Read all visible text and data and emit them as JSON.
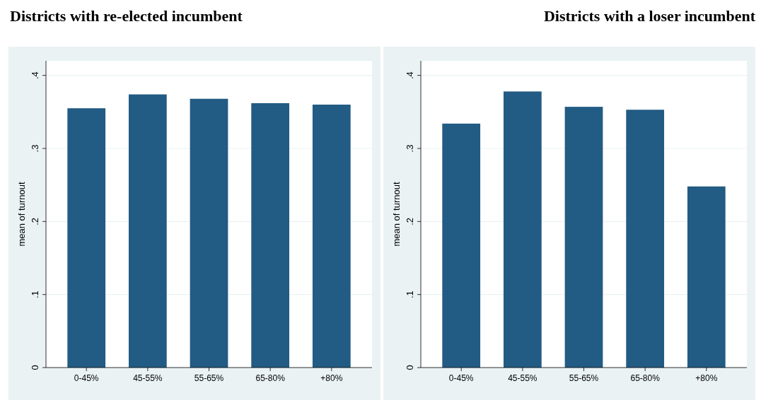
{
  "chart_data": [
    {
      "type": "bar",
      "title": "Districts with re-elected incumbent",
      "ylabel": "mean of turnout",
      "categories": [
        "0-45%",
        "45-55%",
        "55-65%",
        "65-80%",
        "+80%"
      ],
      "values": [
        0.355,
        0.374,
        0.368,
        0.362,
        0.36
      ],
      "color": "#225b83",
      "ylim": [
        0,
        0.42
      ],
      "yticks": [
        {
          "value": 0,
          "label": "0"
        },
        {
          "value": 0.1,
          "label": ".1"
        },
        {
          "value": 0.2,
          "label": ".2"
        },
        {
          "value": 0.3,
          "label": ".3"
        },
        {
          "value": 0.4,
          "label": ".4"
        }
      ],
      "grid": "y"
    },
    {
      "type": "bar",
      "title": "Districts with a loser incumbent",
      "ylabel": "mean of turnout",
      "categories": [
        "0-45%",
        "45-55%",
        "55-65%",
        "65-80%",
        "+80%"
      ],
      "values": [
        0.334,
        0.378,
        0.357,
        0.353,
        0.248
      ],
      "color": "#225b83",
      "ylim": [
        0,
        0.42
      ],
      "yticks": [
        {
          "value": 0,
          "label": "0"
        },
        {
          "value": 0.1,
          "label": ".1"
        },
        {
          "value": 0.2,
          "label": ".2"
        },
        {
          "value": 0.3,
          "label": ".3"
        },
        {
          "value": 0.4,
          "label": ".4"
        }
      ],
      "grid": "y"
    }
  ]
}
